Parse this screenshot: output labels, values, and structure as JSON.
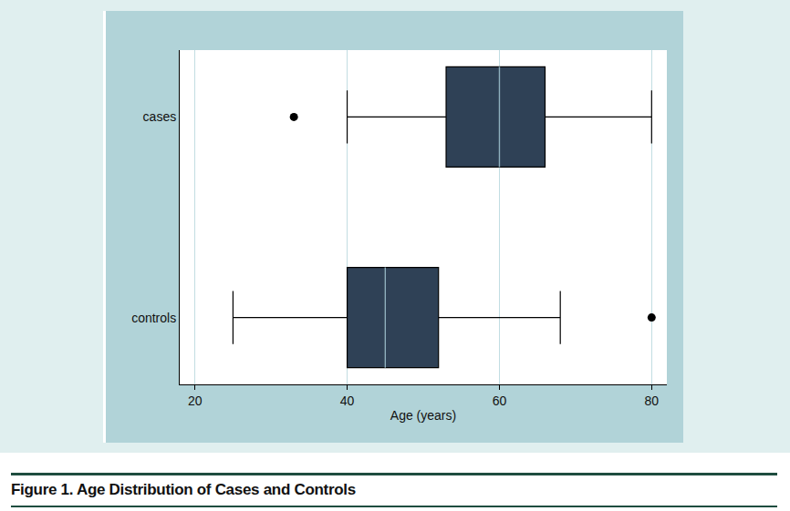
{
  "chart_data": {
    "type": "box",
    "title": "Figure 1. Age Distribution of Cases and Controls",
    "x_label": "Age (years)",
    "orientation": "horizontal",
    "categories": [
      "cases",
      "controls"
    ],
    "lowerfence": [
      40,
      25
    ],
    "q1": [
      53,
      40
    ],
    "median": [
      60,
      45
    ],
    "q3": [
      66,
      52
    ],
    "upperfence": [
      80,
      68
    ],
    "outliers": [
      [
        33
      ],
      [
        80
      ]
    ],
    "color": "#2f4156",
    "xlim": [
      18,
      82
    ],
    "xticks": [
      20,
      40,
      60,
      80
    ],
    "grid": true
  }
}
